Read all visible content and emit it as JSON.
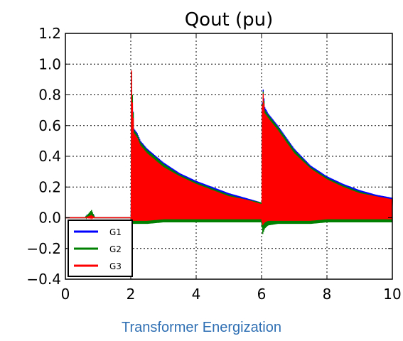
{
  "caption": "Transformer Energization",
  "chart_data": {
    "type": "line",
    "title": "Qout (pu)",
    "xlabel": "",
    "ylabel": "",
    "xlim": [
      0,
      10
    ],
    "ylim": [
      -0.4,
      1.2
    ],
    "xticks": [
      0,
      2,
      4,
      6,
      8,
      10
    ],
    "yticks": [
      -0.4,
      -0.2,
      0.0,
      0.2,
      0.4,
      0.6,
      0.8,
      1.0,
      1.2
    ],
    "grid": true,
    "legend": "bottom-left",
    "series": [
      {
        "name": "G1",
        "color": "#0000ff",
        "x": [
          0,
          0.6,
          0.8,
          0.9,
          2.0,
          2.02,
          2.05,
          2.1,
          2.2,
          2.3,
          2.5,
          3.0,
          3.5,
          4.0,
          4.5,
          5.0,
          5.5,
          5.99,
          6.0,
          6.03,
          6.1,
          6.2,
          6.5,
          7.0,
          7.5,
          8.0,
          8.5,
          9.0,
          9.5,
          10.0
        ],
        "upper": [
          0.0,
          0.0,
          0.04,
          0.0,
          0.0,
          0.98,
          0.8,
          0.58,
          0.55,
          0.5,
          0.45,
          0.36,
          0.29,
          0.24,
          0.2,
          0.16,
          0.13,
          0.1,
          0.1,
          0.88,
          0.72,
          0.68,
          0.6,
          0.45,
          0.34,
          0.27,
          0.22,
          0.18,
          0.15,
          0.13
        ],
        "lower": [
          0.0,
          0.0,
          0.0,
          0.0,
          0.0,
          -0.02,
          -0.03,
          -0.03,
          -0.03,
          -0.03,
          -0.03,
          -0.02,
          -0.02,
          -0.02,
          -0.02,
          -0.02,
          -0.02,
          -0.02,
          -0.02,
          -0.08,
          -0.05,
          -0.04,
          -0.03,
          -0.03,
          -0.03,
          -0.02,
          -0.02,
          -0.02,
          -0.02,
          -0.02
        ]
      },
      {
        "name": "G2",
        "color": "#008000",
        "x": [
          0,
          0.6,
          0.8,
          0.9,
          2.0,
          2.02,
          2.05,
          2.1,
          2.2,
          2.3,
          2.5,
          3.0,
          3.5,
          4.0,
          4.5,
          5.0,
          5.5,
          5.99,
          6.0,
          6.03,
          6.1,
          6.2,
          6.5,
          7.0,
          7.5,
          8.0,
          8.5,
          9.0,
          9.5,
          10.0
        ],
        "upper": [
          0.0,
          0.0,
          0.05,
          0.0,
          0.0,
          0.98,
          0.8,
          0.57,
          0.54,
          0.49,
          0.44,
          0.35,
          0.28,
          0.23,
          0.19,
          0.15,
          0.12,
          0.1,
          0.1,
          0.87,
          0.7,
          0.67,
          0.59,
          0.44,
          0.33,
          0.26,
          0.21,
          0.17,
          0.14,
          0.12
        ],
        "lower": [
          0.0,
          0.0,
          0.0,
          0.0,
          0.0,
          -0.03,
          -0.04,
          -0.04,
          -0.04,
          -0.04,
          -0.04,
          -0.03,
          -0.03,
          -0.03,
          -0.03,
          -0.03,
          -0.03,
          -0.03,
          -0.03,
          -0.11,
          -0.07,
          -0.05,
          -0.04,
          -0.04,
          -0.04,
          -0.03,
          -0.03,
          -0.03,
          -0.03,
          -0.03
        ]
      },
      {
        "name": "G3",
        "color": "#ff0000",
        "x": [
          0,
          0.6,
          0.8,
          0.9,
          2.0,
          2.02,
          2.05,
          2.1,
          2.2,
          2.3,
          2.5,
          3.0,
          3.5,
          4.0,
          4.5,
          5.0,
          5.5,
          5.99,
          6.0,
          6.03,
          6.1,
          6.2,
          6.5,
          7.0,
          7.5,
          8.0,
          8.5,
          9.0,
          9.5,
          10.0
        ],
        "upper": [
          0.0,
          0.0,
          0.01,
          0.0,
          0.0,
          1.0,
          0.75,
          0.55,
          0.52,
          0.47,
          0.42,
          0.33,
          0.27,
          0.22,
          0.18,
          0.14,
          0.12,
          0.09,
          0.09,
          0.86,
          0.68,
          0.65,
          0.57,
          0.42,
          0.32,
          0.25,
          0.2,
          0.16,
          0.14,
          0.12
        ],
        "lower": [
          0.0,
          0.0,
          0.0,
          0.0,
          0.0,
          -0.01,
          -0.02,
          -0.02,
          -0.02,
          -0.02,
          -0.02,
          -0.01,
          -0.01,
          -0.01,
          -0.01,
          -0.01,
          -0.01,
          -0.01,
          -0.01,
          -0.05,
          -0.03,
          -0.02,
          -0.02,
          -0.02,
          -0.02,
          -0.01,
          -0.01,
          -0.01,
          -0.01,
          -0.01
        ]
      }
    ]
  }
}
